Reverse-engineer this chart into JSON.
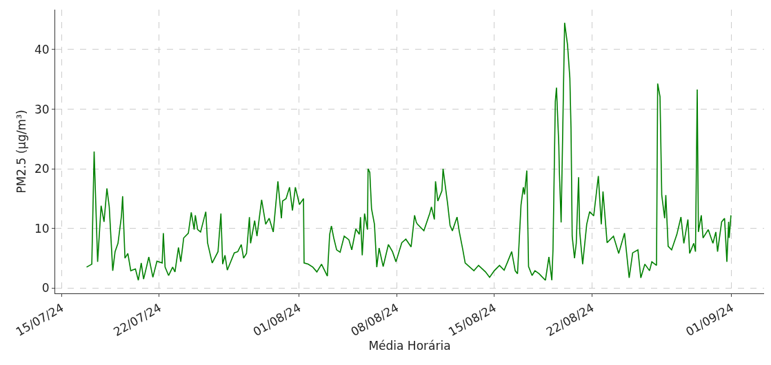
{
  "chart_data": {
    "type": "line",
    "xlabel": "Média Horária",
    "ylabel": "PM2.5 (µg/m³)",
    "xlim": [
      "--07-14T13:00",
      "--09-03T08:00"
    ],
    "ylim": [
      -0.9,
      46.7
    ],
    "xticks": [
      {
        "value": "--07-15",
        "label": "15/07/24"
      },
      {
        "value": "--07-22",
        "label": "22/07/24"
      },
      {
        "value": "--08-01",
        "label": "01/08/24"
      },
      {
        "value": "--08-08",
        "label": "08/08/24"
      },
      {
        "value": "--08-15",
        "label": "15/08/24"
      },
      {
        "value": "--08-22",
        "label": "22/08/24"
      },
      {
        "value": "--09-01",
        "label": "01/09/24"
      }
    ],
    "yticks": [
      0,
      10,
      20,
      30,
      40
    ],
    "grid": true,
    "line_style": "solid",
    "marker": "none",
    "series": [
      {
        "color": "#008000",
        "x": [
          "--07-16T19:00",
          "--07-17T04:00",
          "--07-17T08:00",
          "--07-17T14:00",
          "--07-17T20:00",
          "--07-18T01:00",
          "--07-18T06:00",
          "--07-18T10:00",
          "--07-18T16:00",
          "--07-18T20:00",
          "--07-19T01:00",
          "--07-19T07:00",
          "--07-19T09:00",
          "--07-19T13:00",
          "--07-19T18:00",
          "--07-19T23:00",
          "--07-20T07:00",
          "--07-20T12:00",
          "--07-20T17:00",
          "--07-20T21:00",
          "--07-21T02:00",
          "--07-21T06:00",
          "--07-21T13:00",
          "--07-21T20:00",
          "--07-22T05:00",
          "--07-22T07:00",
          "--07-22T10:00",
          "--07-22T16:00",
          "--07-22T23:00",
          "--07-23T03:00",
          "--07-23T09:00",
          "--07-23T13:00",
          "--07-23T18:00",
          "--07-24T02:00",
          "--07-24T07:00",
          "--07-24T12:00",
          "--07-24T14:00",
          "--07-24T18:00",
          "--07-24T23:00",
          "--07-25T08:00",
          "--07-25T11:00",
          "--07-25T19:00",
          "--07-26T05:00",
          "--07-26T10:00",
          "--07-26T13:00",
          "--07-26T17:00",
          "--07-26T21:00",
          "--07-27T09:00",
          "--07-27T15:00",
          "--07-27T21:00",
          "--07-28T01:00",
          "--07-28T06:00",
          "--07-28T11:00",
          "--07-28T13:00",
          "--07-28T20:00",
          "--07-29T00:00",
          "--07-29T08:00",
          "--07-29T15:00",
          "--07-29T21:00",
          "--07-30T04:00",
          "--07-30T12:00",
          "--07-30T18:00",
          "--07-30T20:00",
          "--07-31T02:00",
          "--07-31T08:00",
          "--07-31T13:00",
          "--07-31T18:00",
          "--08-01T01:00",
          "--08-01T08:00",
          "--08-01T09:00",
          "--08-01T16:00",
          "--08-02T00:00",
          "--08-02T07:00",
          "--08-02T15:00",
          "--08-03T01:00",
          "--08-03T05:00",
          "--08-03T08:00",
          "--08-03T12:00",
          "--08-03T17:00",
          "--08-03T23:00",
          "--08-04T06:00",
          "--08-04T14:00",
          "--08-04T19:00",
          "--08-05T02:00",
          "--08-05T08:00",
          "--08-05T10:00",
          "--08-05T13:00",
          "--08-05T17:00",
          "--08-05T22:00",
          "--08-05T23:00",
          "--08-06T02:00",
          "--08-06T05:00",
          "--08-06T10:00",
          "--08-06T14:00",
          "--08-06T18:00",
          "--08-07T01:00",
          "--08-07T10:00",
          "--08-07T17:00",
          "--08-07T23:00",
          "--08-08T09:00",
          "--08-08T16:00",
          "--08-09T01:00",
          "--08-09T07:00",
          "--08-09T10:00",
          "--08-09T12:00",
          "--08-09T23:00",
          "--08-10T09:00",
          "--08-10T12:00",
          "--08-10T17:00",
          "--08-10T19:00",
          "--08-10T23:00",
          "--08-11T06:00",
          "--08-11T08:00",
          "--08-11T16:00",
          "--08-11T20:00",
          "--08-12T00:00",
          "--08-12T08:00",
          "--08-12T12:00",
          "--08-12T18:00",
          "--08-12T22:00",
          "--08-13T13:00",
          "--08-13T21:00",
          "--08-14T09:00",
          "--08-14T16:00",
          "--08-15T00:00",
          "--08-15T09:00",
          "--08-15T17:00",
          "--08-15T23:00",
          "--08-16T06:00",
          "--08-16T12:00",
          "--08-16T16:00",
          "--08-16T22:00",
          "--08-17T02:00",
          "--08-17T04:00",
          "--08-17T08:00",
          "--08-17T11:00",
          "--08-17T17:00",
          "--08-17T22:00",
          "--08-18T05:00",
          "--08-18T16:00",
          "--08-18T22:00",
          "--08-19T03:00",
          "--08-19T05:00",
          "--08-19T09:00",
          "--08-19T11:00",
          "--08-19T15:00",
          "--08-19T16:00",
          "--08-19T19:00",
          "--08-20T01:00",
          "--08-20T06:00",
          "--08-20T10:00",
          "--08-20T12:00",
          "--08-20T14:00",
          "--08-20T18:00",
          "--08-20T21:00",
          "--08-21T01:00",
          "--08-21T03:00",
          "--08-21T08:00",
          "--08-21T15:00",
          "--08-21T20:00",
          "--08-22T03:00",
          "--08-22T11:00",
          "--08-22T16:00",
          "--08-22T19:00",
          "--08-23T02:00",
          "--08-23T13:00",
          "--08-23T22:00",
          "--08-24T08:00",
          "--08-24T16:00",
          "--08-24T22:00",
          "--08-25T07:00",
          "--08-25T12:00",
          "--08-25T19:00",
          "--08-26T03:00",
          "--08-26T07:00",
          "--08-26T15:00",
          "--08-26T17:00",
          "--08-26T21:00",
          "--08-27T00:00",
          "--08-27T05:00",
          "--08-27T07:00",
          "--08-27T11:00",
          "--08-27T17:00",
          "--08-28T02:00",
          "--08-28T09:00",
          "--08-28T14:00",
          "--08-28T21:00",
          "--08-29T00:00",
          "--08-29T07:00",
          "--08-29T10:00",
          "--08-29T13:00",
          "--08-29T15:00",
          "--08-29T20:00",
          "--08-29T23:00",
          "--08-30T08:00",
          "--08-30T16:00",
          "--08-30T21:00",
          "--08-31T00:00",
          "--08-31T07:00",
          "--08-31T12:00",
          "--08-31T16:00",
          "--08-31T19:00",
          "--08-31T20:00",
          "--08-31T23:00"
        ],
        "values": [
          3.5,
          4.0,
          22.9,
          4.4,
          13.8,
          11.1,
          16.7,
          13.6,
          2.9,
          6.1,
          7.5,
          12.1,
          15.4,
          5.0,
          5.8,
          2.9,
          3.2,
          1.3,
          4.2,
          1.5,
          3.5,
          5.2,
          1.8,
          4.5,
          4.2,
          9.2,
          3.5,
          2.1,
          3.5,
          2.7,
          6.8,
          4.4,
          8.4,
          9.2,
          12.7,
          9.8,
          12.2,
          9.8,
          9.4,
          12.8,
          7.6,
          4.2,
          6.1,
          12.5,
          4.0,
          5.5,
          3.0,
          5.9,
          6.1,
          7.3,
          5.0,
          5.8,
          11.9,
          7.5,
          11.3,
          8.7,
          14.8,
          10.7,
          11.7,
          9.4,
          17.9,
          11.7,
          14.6,
          15.0,
          16.9,
          13.0,
          16.9,
          14.0,
          15.0,
          4.2,
          4.0,
          3.5,
          2.7,
          4.0,
          2.0,
          9.0,
          10.4,
          8.4,
          6.4,
          6.0,
          8.7,
          8.1,
          6.4,
          9.9,
          9.0,
          11.9,
          5.5,
          12.5,
          9.8,
          20.0,
          19.4,
          13.3,
          10.7,
          3.5,
          6.7,
          3.6,
          7.3,
          6.1,
          4.4,
          7.6,
          8.2,
          6.9,
          12.2,
          11.0,
          10.7,
          9.6,
          12.5,
          13.6,
          11.5,
          17.9,
          14.6,
          16.3,
          20.0,
          14.0,
          10.5,
          9.6,
          11.9,
          9.4,
          6.4,
          4.2,
          2.9,
          3.8,
          2.7,
          1.8,
          2.9,
          3.8,
          3.0,
          4.4,
          6.1,
          2.9,
          2.4,
          13.9,
          16.9,
          15.7,
          19.7,
          3.6,
          2.1,
          2.9,
          2.4,
          1.3,
          5.2,
          1.3,
          6.4,
          31.3,
          33.6,
          24.0,
          19.4,
          11.0,
          44.5,
          40.8,
          35.2,
          26.7,
          8.7,
          5.0,
          7.5,
          18.6,
          9.4,
          4.0,
          10.7,
          12.8,
          12.1,
          18.8,
          10.7,
          16.2,
          7.6,
          8.7,
          5.8,
          9.2,
          1.7,
          5.9,
          6.4,
          1.7,
          4.0,
          2.9,
          4.4,
          3.8,
          34.3,
          32.1,
          15.6,
          11.7,
          15.6,
          7.0,
          6.4,
          9.0,
          11.9,
          7.5,
          11.5,
          5.8,
          7.5,
          6.1,
          33.3,
          9.4,
          12.2,
          8.4,
          9.8,
          7.5,
          9.4,
          6.1,
          11.1,
          11.7,
          4.4,
          11.1,
          8.4,
          12.2
        ]
      }
    ]
  }
}
